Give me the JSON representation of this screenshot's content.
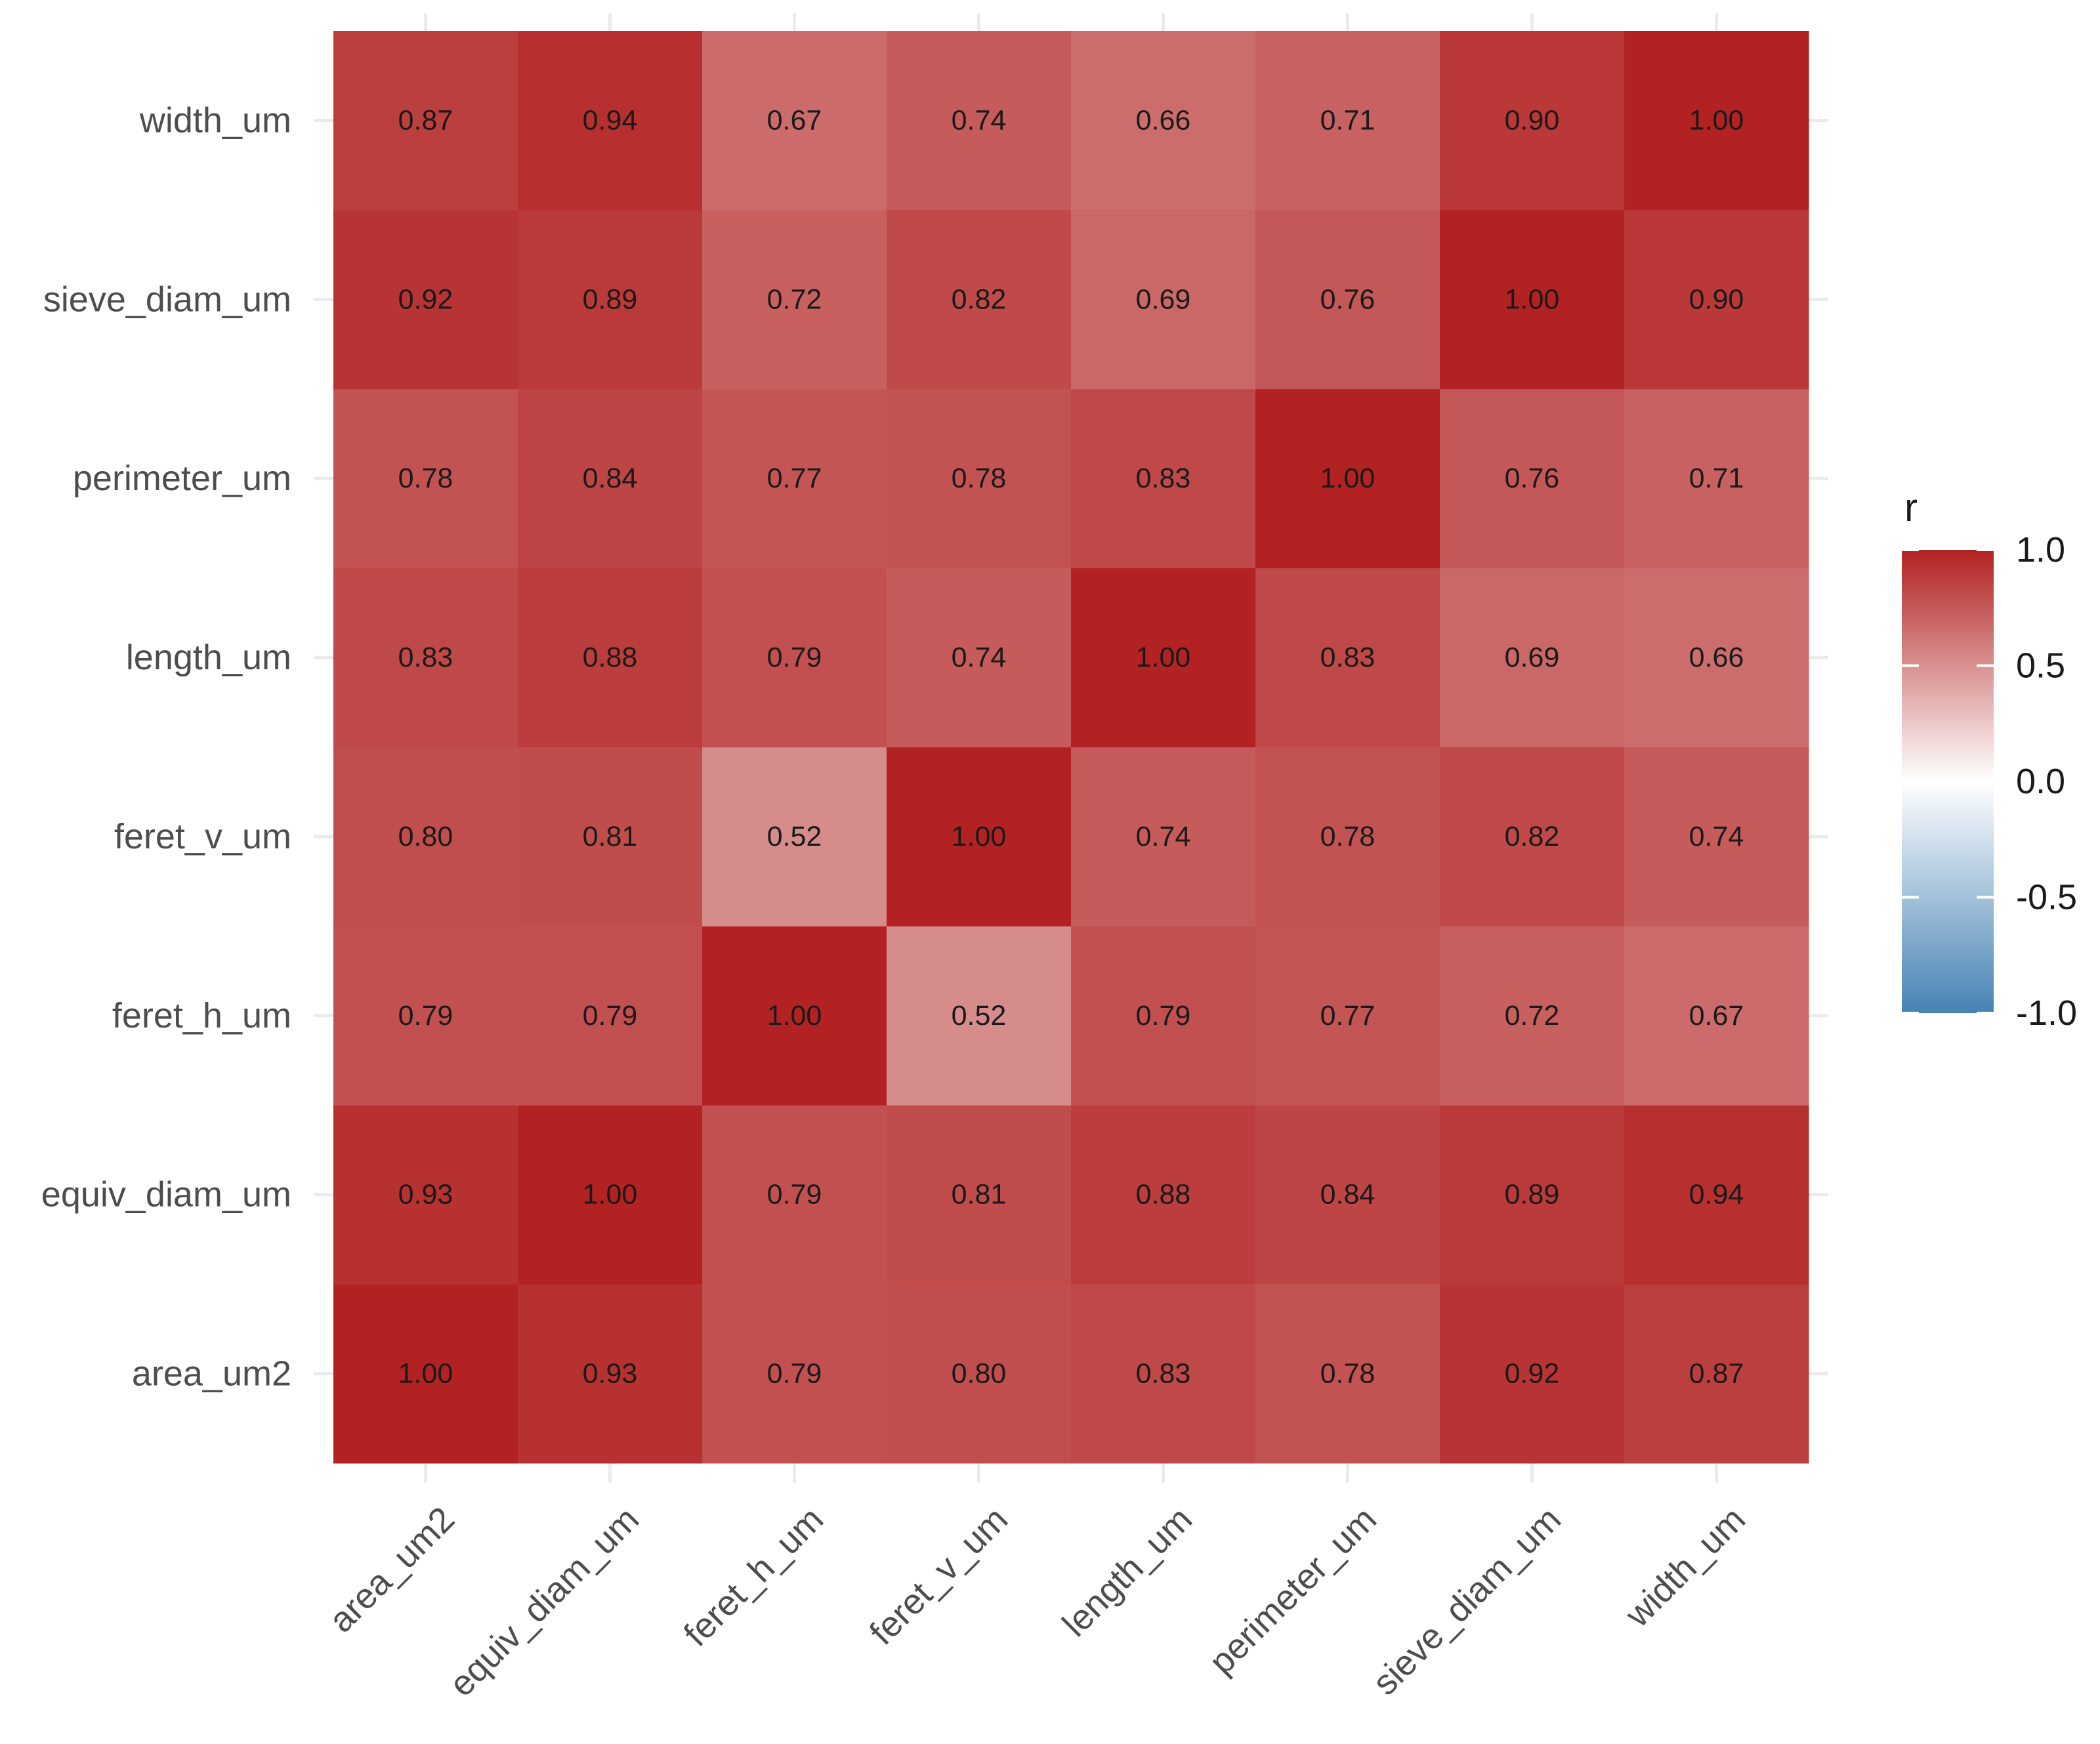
{
  "chart_data": {
    "type": "heatmap",
    "title": "",
    "xlabel": "",
    "ylabel": "",
    "variables": [
      "area_um2",
      "equiv_diam_um",
      "feret_h_um",
      "feret_v_um",
      "length_um",
      "perimeter_um",
      "sieve_diam_um",
      "width_um"
    ],
    "x_categories": [
      "area_um2",
      "equiv_diam_um",
      "feret_h_um",
      "feret_v_um",
      "length_um",
      "perimeter_um",
      "sieve_diam_um",
      "width_um"
    ],
    "y_categories_bottom_to_top": [
      "area_um2",
      "equiv_diam_um",
      "feret_h_um",
      "feret_v_um",
      "length_um",
      "perimeter_um",
      "sieve_diam_um",
      "width_um"
    ],
    "matrix": [
      [
        1.0,
        0.93,
        0.79,
        0.8,
        0.83,
        0.78,
        0.92,
        0.87
      ],
      [
        0.93,
        1.0,
        0.79,
        0.81,
        0.88,
        0.84,
        0.89,
        0.94
      ],
      [
        0.79,
        0.79,
        1.0,
        0.52,
        0.79,
        0.77,
        0.72,
        0.67
      ],
      [
        0.8,
        0.81,
        0.52,
        1.0,
        0.74,
        0.78,
        0.82,
        0.74
      ],
      [
        0.83,
        0.88,
        0.79,
        0.74,
        1.0,
        0.83,
        0.69,
        0.66
      ],
      [
        0.78,
        0.84,
        0.77,
        0.78,
        0.83,
        1.0,
        0.76,
        0.71
      ],
      [
        0.92,
        0.89,
        0.72,
        0.82,
        0.69,
        0.76,
        1.0,
        0.9
      ],
      [
        0.87,
        0.94,
        0.67,
        0.74,
        0.66,
        0.71,
        0.9,
        1.0
      ]
    ],
    "value_format": "2-decimal",
    "color_scale": {
      "type": "diverging",
      "low": "#4682B4",
      "mid": "#FFFFFF",
      "high": "#B22222",
      "domain": [
        -1.0,
        0.0,
        1.0
      ]
    },
    "legend": {
      "title": "r",
      "position": "right",
      "ticks": [
        1.0,
        0.5,
        0.0,
        -0.5,
        -1.0
      ],
      "tick_labels": [
        "1.0",
        "0.5",
        "0.0",
        "-0.5",
        "-1.0"
      ]
    },
    "x_tick_rotation_deg": 45,
    "grid": true
  }
}
